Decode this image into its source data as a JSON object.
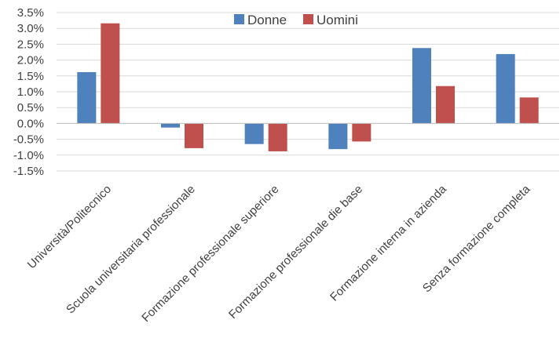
{
  "chart_data": {
    "type": "bar",
    "categories": [
      "Università/Politecnico",
      "Scuola universitaria professionale",
      "Formazione professionale superiore",
      "Formazione professionale die base",
      "Formazione interna in azienda",
      "Senza formazione completa"
    ],
    "series": [
      {
        "name": "Donne",
        "color": "#4f81bd",
        "values": [
          1.62,
          -0.13,
          -0.65,
          -0.81,
          2.38,
          2.19
        ]
      },
      {
        "name": "Uomini",
        "color": "#c0504d",
        "values": [
          3.16,
          -0.78,
          -0.88,
          -0.57,
          1.18,
          0.82
        ]
      }
    ],
    "ylim": [
      -1.5,
      3.5
    ],
    "y_ticks": [
      "3.5%",
      "3.0%",
      "2.5%",
      "2.0%",
      "1.5%",
      "1.0%",
      "0.5%",
      "0.0%",
      "-0.5%",
      "-1.0%",
      "-1.5%"
    ],
    "title": "",
    "xlabel": "",
    "ylabel": "",
    "legend_position": "top-center",
    "grid": true
  }
}
